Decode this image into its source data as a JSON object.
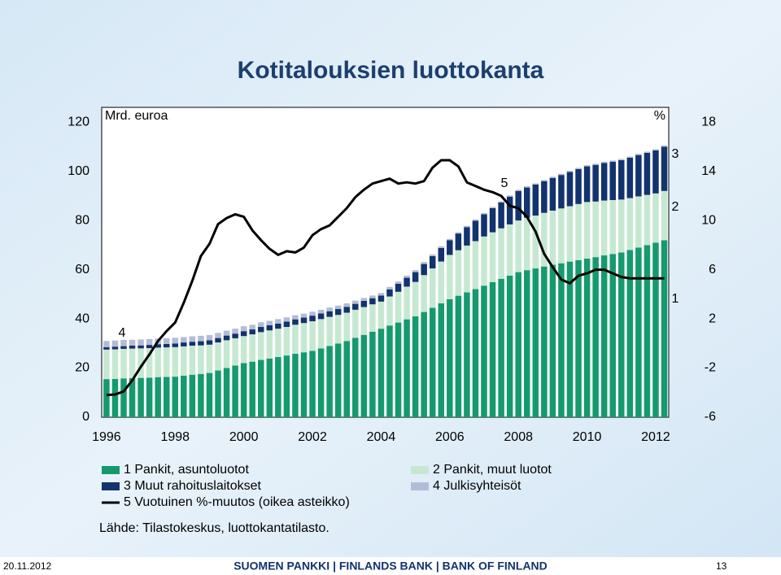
{
  "chart_data": {
    "type": "bar",
    "stacked": true,
    "title": "Kotitalouksien luottokanta",
    "y_label": "Mrd. euroa",
    "y2_label": "%",
    "source": "Lähde: Tilastokeskus, luottokantatilasto.",
    "annotations": [
      "4",
      "5",
      "3",
      "2",
      "1"
    ],
    "x": [
      1996,
      1996.25,
      1996.5,
      1996.75,
      1997,
      1997.25,
      1997.5,
      1997.75,
      1998,
      1998.25,
      1998.5,
      1998.75,
      1999,
      1999.25,
      1999.5,
      1999.75,
      2000,
      2000.25,
      2000.5,
      2000.75,
      2001,
      2001.25,
      2001.5,
      2001.75,
      2002,
      2002.25,
      2002.5,
      2002.75,
      2003,
      2003.25,
      2003.5,
      2003.75,
      2004,
      2004.25,
      2004.5,
      2004.75,
      2005,
      2005.25,
      2005.5,
      2005.75,
      2006,
      2006.25,
      2006.5,
      2006.75,
      2007,
      2007.25,
      2007.5,
      2007.75,
      2008,
      2008.25,
      2008.5,
      2008.75,
      2009,
      2009.25,
      2009.5,
      2009.75,
      2010,
      2010.25,
      2010.5,
      2010.75,
      2011,
      2011.25,
      2011.5,
      2011.75,
      2012,
      2012.25
    ],
    "xlim": [
      1995.86,
      2012.38
    ],
    "xticks": [
      1996,
      1998,
      2000,
      2002,
      2004,
      2006,
      2008,
      2010,
      2012
    ],
    "ylim": [
      0,
      126
    ],
    "yticks": [
      0,
      20,
      40,
      60,
      80,
      100,
      120
    ],
    "y2lim": [
      -6,
      19.2
    ],
    "y2ticks": [
      -6,
      -2,
      2,
      6,
      10,
      14,
      18
    ],
    "grid": false,
    "series": [
      {
        "name": "1 Pankit, asuntoluotot",
        "color": "#159a6e",
        "values": [
          15.5,
          15.6,
          15.8,
          15.9,
          16,
          16.1,
          16.3,
          16.4,
          16.5,
          16.9,
          17.3,
          17.6,
          18,
          19,
          20,
          21,
          22,
          22.6,
          23.3,
          23.9,
          24.5,
          25.1,
          25.8,
          26.4,
          27,
          28,
          29,
          30,
          31,
          32.3,
          33.5,
          34.8,
          36,
          37.3,
          38.5,
          39.8,
          41,
          42.8,
          44.5,
          46.3,
          48,
          49.4,
          50.8,
          52.1,
          53.5,
          54.9,
          56.3,
          57.6,
          59,
          59.8,
          60.5,
          61.3,
          62,
          62.6,
          63.3,
          63.9,
          64.5,
          65.1,
          65.8,
          66.4,
          67,
          68,
          69,
          70,
          71,
          72
        ]
      },
      {
        "name": "2 Pankit, muut luotot",
        "color": "#c6e8d1",
        "values": [
          12,
          12,
          12,
          12,
          12,
          12,
          12,
          12,
          12,
          11.9,
          11.8,
          11.6,
          11.5,
          11.4,
          11.3,
          11.1,
          11,
          11.1,
          11.3,
          11.4,
          11.5,
          11.6,
          11.8,
          11.9,
          12,
          11.9,
          11.8,
          11.6,
          11.5,
          11.4,
          11.3,
          11.1,
          11,
          11.8,
          12.5,
          13.3,
          14,
          15,
          16,
          17,
          18,
          18.5,
          19,
          19.5,
          20,
          20.3,
          20.5,
          20.8,
          21,
          21.3,
          21.5,
          21.8,
          22,
          22.3,
          22.5,
          22.8,
          23,
          22.6,
          22.3,
          21.9,
          21.5,
          21.1,
          20.8,
          20.4,
          20,
          20
        ]
      },
      {
        "name": "3 Muut rahoituslaitokset",
        "color": "#12336e",
        "values": [
          1,
          1.1,
          1.1,
          1.2,
          1.2,
          1.3,
          1.4,
          1.4,
          1.5,
          1.6,
          1.6,
          1.7,
          1.8,
          1.8,
          1.9,
          1.9,
          2,
          2,
          2.1,
          2.1,
          2.1,
          2.2,
          2.2,
          2.2,
          2.3,
          2.3,
          2.3,
          2.4,
          2.4,
          2.4,
          2.5,
          2.5,
          2.5,
          2.9,
          3.3,
          3.6,
          4,
          4.5,
          5,
          5.5,
          6,
          6.8,
          7.5,
          8.3,
          9,
          9.8,
          10.5,
          11.3,
          12,
          12.3,
          12.6,
          12.9,
          13.3,
          13.6,
          13.9,
          14.2,
          14.5,
          14.9,
          15.3,
          15.6,
          16,
          16.4,
          16.8,
          17.1,
          17.5,
          18
        ]
      },
      {
        "name": "4 Julkisyhteisöt",
        "color": "#b3bcd7",
        "values": [
          2.5,
          2.5,
          2.5,
          2.4,
          2.4,
          2.4,
          2.3,
          2.3,
          2.3,
          2.2,
          2.2,
          2.2,
          2.1,
          2.1,
          2,
          2,
          2,
          1.9,
          1.9,
          1.8,
          1.8,
          1.7,
          1.7,
          1.6,
          1.6,
          1.5,
          1.5,
          1.4,
          1.4,
          1.3,
          1.2,
          1.1,
          1,
          1,
          0.9,
          0.9,
          0.8,
          0.8,
          0.7,
          0.7,
          0.5,
          0.5,
          0.5,
          0.5,
          0.5,
          0.5,
          0.5,
          0.5,
          0.5,
          0.5,
          0.5,
          0.5,
          0.5,
          0.5,
          0.5,
          0.5,
          0.5,
          0.5,
          0.5,
          0.5,
          0.5,
          0.5,
          0.5,
          0.5,
          0.5,
          0.5
        ]
      },
      {
        "name": "5 Vuotuinen %-muutos (oikea asteikko)",
        "color": "#000000",
        "type": "line",
        "axis": "y2",
        "values": [
          -4.2,
          -4.15,
          -3.9,
          -3.0,
          -1.9,
          -0.9,
          0.2,
          1.0,
          1.7,
          3.3,
          5.1,
          7.1,
          8.1,
          9.7,
          10.2,
          10.5,
          10.3,
          9.2,
          8.4,
          7.7,
          7.2,
          7.5,
          7.4,
          7.8,
          8.8,
          9.3,
          9.6,
          10.3,
          11.0,
          11.9,
          12.5,
          13.0,
          13.2,
          13.4,
          13.0,
          13.1,
          13.0,
          13.2,
          14.3,
          14.9,
          14.9,
          14.4,
          13.1,
          12.8,
          12.5,
          12.3,
          12.0,
          11.2,
          11.0,
          10.3,
          9.1,
          7.3,
          6.2,
          5.2,
          4.9,
          5.5,
          5.7,
          6.0,
          6.0,
          5.7,
          5.4,
          5.3,
          5.3,
          5.3,
          5.3,
          5.3
        ]
      }
    ]
  },
  "footer": {
    "date": "20.11.2012",
    "organization": "SUOMEN PANKKI | FINLANDS BANK | BANK OF FINLAND",
    "page": "13"
  }
}
